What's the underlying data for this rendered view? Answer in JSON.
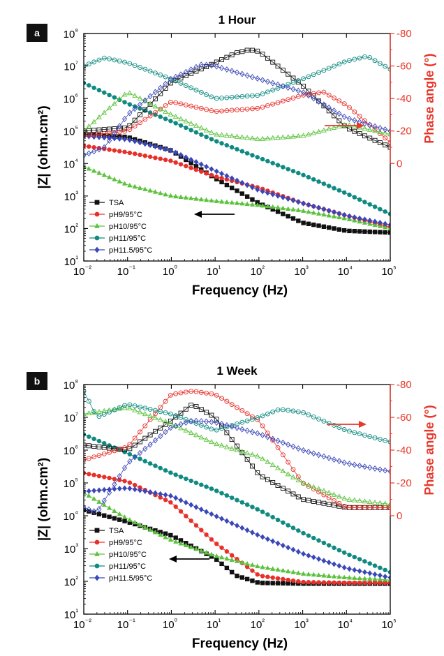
{
  "chart_data": [
    {
      "panel_label": "a",
      "title": "1 Hour",
      "type": "line",
      "xlabel": "Frequency (Hz)",
      "ylabel": "|Z| (ohm.cm²)",
      "y2label": "Phase angle (°)",
      "xscale": "log",
      "yscale": "log",
      "xlim": [
        0.01,
        100000
      ],
      "ylim": [
        10,
        100000000
      ],
      "y2lim": [
        0,
        -80
      ],
      "x_ticks": [
        "10⁻²",
        "10⁻¹",
        "10⁰",
        "10¹",
        "10²",
        "10³",
        "10⁴",
        "10⁵"
      ],
      "y_ticks": [
        "10¹",
        "10²",
        "10³",
        "10⁴",
        "10⁵",
        "10⁶",
        "10⁷",
        "10⁸"
      ],
      "y2_ticks": [
        "0",
        "-20",
        "-40",
        "-60",
        "-80"
      ],
      "legend": {
        "position": "bottom-left",
        "entries": [
          "TSA",
          "pH9/95°C",
          "pH10/95°C",
          "pH11/95°C",
          "pH11.5/95°C"
        ]
      },
      "annotations": [
        "arrow-left: |Z| series",
        "arrow-right: phase series"
      ],
      "series": [
        {
          "name": "TSA",
          "color": "#111111",
          "quantity": "|Z|",
          "x": [
            0.01,
            0.1,
            1,
            10,
            100,
            1000,
            10000,
            100000
          ],
          "y": [
            80000,
            65000,
            25000,
            3500,
            600,
            150,
            85,
            75
          ]
        },
        {
          "name": "pH9/95°C",
          "color": "#e8302a",
          "quantity": "|Z|",
          "x": [
            0.01,
            0.1,
            1,
            10,
            100,
            1000,
            10000,
            100000
          ],
          "y": [
            35000,
            22000,
            12000,
            4000,
            1800,
            600,
            250,
            110
          ]
        },
        {
          "name": "pH10/95°C",
          "color": "#5cc23d",
          "quantity": "|Z|",
          "x": [
            0.01,
            0.1,
            1,
            10,
            100,
            1000,
            10000,
            100000
          ],
          "y": [
            8000,
            2200,
            1000,
            700,
            520,
            350,
            200,
            100
          ]
        },
        {
          "name": "pH11/95°C",
          "color": "#0e8a80",
          "quantity": "|Z|",
          "x": [
            0.01,
            0.1,
            1,
            10,
            100,
            1000,
            10000,
            100000
          ],
          "y": [
            3000000,
            700000,
            200000,
            50000,
            15000,
            4500,
            1200,
            280
          ]
        },
        {
          "name": "pH11.5/95°C",
          "color": "#3a47b8",
          "quantity": "|Z|",
          "x": [
            0.01,
            0.1,
            1,
            10,
            100,
            1000,
            10000,
            100000
          ],
          "y": [
            70000,
            55000,
            25000,
            6000,
            1500,
            600,
            250,
            130
          ]
        },
        {
          "name": "TSA",
          "color": "#111111",
          "quantity": "phase",
          "x": [
            0.01,
            0.1,
            1,
            10,
            30,
            60,
            100,
            1000,
            10000,
            100000
          ],
          "y": [
            -20,
            -22,
            -50,
            -62,
            -68,
            -70,
            -69,
            -48,
            -22,
            -10
          ]
        },
        {
          "name": "pH9/95°C",
          "color": "#e8302a",
          "quantity": "phase",
          "x": [
            0.01,
            0.1,
            1,
            10,
            100,
            1000,
            3000,
            10000,
            100000
          ],
          "y": [
            -17,
            -20,
            -38,
            -32,
            -34,
            -42,
            -44,
            -36,
            -13
          ]
        },
        {
          "name": "pH10/95°C",
          "color": "#5cc23d",
          "quantity": "phase",
          "x": [
            0.01,
            0.1,
            1,
            10,
            100,
            1000,
            10000,
            100000
          ],
          "y": [
            -20,
            -44,
            -30,
            -18,
            -15,
            -17,
            -24,
            -18
          ]
        },
        {
          "name": "pH11/95°C",
          "color": "#0e8a80",
          "quantity": "phase",
          "x": [
            0.01,
            0.03,
            0.1,
            1,
            10,
            100,
            1000,
            10000,
            30000,
            100000
          ],
          "y": [
            -60,
            -65,
            -62,
            -52,
            -40,
            -42,
            -52,
            -63,
            -66,
            -58
          ]
        },
        {
          "name": "pH11.5/95°C",
          "color": "#3a47b8",
          "quantity": "phase",
          "x": [
            0.01,
            0.03,
            0.1,
            1,
            5,
            10,
            100,
            1000,
            10000,
            100000
          ],
          "y": [
            -5,
            -10,
            -30,
            -52,
            -61,
            -60,
            -52,
            -44,
            -28,
            -20
          ]
        }
      ]
    },
    {
      "panel_label": "b",
      "title": "1 Week",
      "type": "line",
      "xlabel": "Frequency (Hz)",
      "ylabel": "|Z| (ohm.cm²)",
      "y2label": "Phase angle (°)",
      "xscale": "log",
      "yscale": "log",
      "xlim": [
        0.01,
        100000
      ],
      "ylim": [
        10,
        100000000
      ],
      "y2lim": [
        0,
        -80
      ],
      "x_ticks": [
        "10⁻²",
        "10⁻¹",
        "10⁰",
        "10¹",
        "10²",
        "10³",
        "10⁴",
        "10⁵"
      ],
      "y_ticks": [
        "10¹",
        "10²",
        "10³",
        "10⁴",
        "10⁵",
        "10⁶",
        "10⁷",
        "10⁸"
      ],
      "y2_ticks": [
        "0",
        "-20",
        "-40",
        "-60",
        "-80"
      ],
      "legend": {
        "position": "bottom-left",
        "entries": [
          "TSA",
          "pH9/95°C",
          "pH10/95°C",
          "pH11/95°C",
          "pH11.5/95°C"
        ]
      },
      "annotations": [
        "arrow-left: |Z| series",
        "arrow-right: phase series"
      ],
      "series": [
        {
          "name": "TSA",
          "color": "#111111",
          "quantity": "|Z|",
          "x": [
            0.01,
            0.1,
            1,
            10,
            30,
            100,
            1000,
            10000,
            100000
          ],
          "y": [
            15000,
            6500,
            2500,
            500,
            150,
            90,
            85,
            85,
            85
          ]
        },
        {
          "name": "pH9/95°C",
          "color": "#e8302a",
          "quantity": "|Z|",
          "x": [
            0.01,
            0.1,
            1,
            10,
            100,
            1000,
            10000,
            100000
          ],
          "y": [
            200000,
            110000,
            25000,
            1500,
            150,
            95,
            90,
            90
          ]
        },
        {
          "name": "pH10/95°C",
          "color": "#5cc23d",
          "quantity": "|Z|",
          "x": [
            0.01,
            0.1,
            1,
            10,
            100,
            1000,
            10000,
            100000
          ],
          "y": [
            50000,
            8000,
            1800,
            600,
            280,
            170,
            130,
            110
          ]
        },
        {
          "name": "pH11/95°C",
          "color": "#0e8a80",
          "quantity": "|Z|",
          "x": [
            0.01,
            0.1,
            1,
            10,
            100,
            1000,
            10000,
            100000
          ],
          "y": [
            3000000,
            800000,
            200000,
            60000,
            15000,
            3000,
            700,
            190
          ]
        },
        {
          "name": "pH11.5/95°C",
          "color": "#3a47b8",
          "quantity": "|Z|",
          "x": [
            0.01,
            0.1,
            1,
            10,
            100,
            1000,
            10000,
            100000
          ],
          "y": [
            55000,
            70000,
            40000,
            10000,
            2500,
            700,
            250,
            130
          ]
        },
        {
          "name": "TSA",
          "color": "#111111",
          "quantity": "phase",
          "x": [
            0.01,
            0.1,
            1,
            3,
            10,
            100,
            1000,
            10000,
            100000
          ],
          "y": [
            -43,
            -40,
            -58,
            -68,
            -60,
            -25,
            -10,
            -5,
            -5
          ]
        },
        {
          "name": "pH9/95°C",
          "color": "#e8302a",
          "quantity": "phase",
          "x": [
            0.01,
            0.1,
            1,
            3,
            10,
            100,
            1000,
            10000,
            100000
          ],
          "y": [
            -34,
            -42,
            -74,
            -76,
            -74,
            -58,
            -20,
            -5,
            -5
          ]
        },
        {
          "name": "pH10/95°C",
          "color": "#5cc23d",
          "quantity": "phase",
          "x": [
            0.01,
            0.1,
            1,
            10,
            100,
            1000,
            10000,
            100000
          ],
          "y": [
            -62,
            -66,
            -56,
            -44,
            -36,
            -20,
            -10,
            -7
          ]
        },
        {
          "name": "pH11/95°C",
          "color": "#0e8a80",
          "quantity": "phase",
          "x": [
            0.01,
            0.02,
            0.1,
            1,
            10,
            100,
            300,
            1000,
            10000,
            100000
          ],
          "y": [
            -76,
            -60,
            -68,
            -62,
            -52,
            -60,
            -65,
            -63,
            -52,
            -45
          ]
        },
        {
          "name": "pH11.5/95°C",
          "color": "#3a47b8",
          "quantity": "phase",
          "x": [
            0.01,
            0.02,
            0.1,
            1,
            3,
            10,
            100,
            1000,
            10000,
            100000
          ],
          "y": [
            -5,
            -2,
            -32,
            -54,
            -58,
            -57,
            -50,
            -40,
            -32,
            -27
          ]
        }
      ]
    }
  ]
}
